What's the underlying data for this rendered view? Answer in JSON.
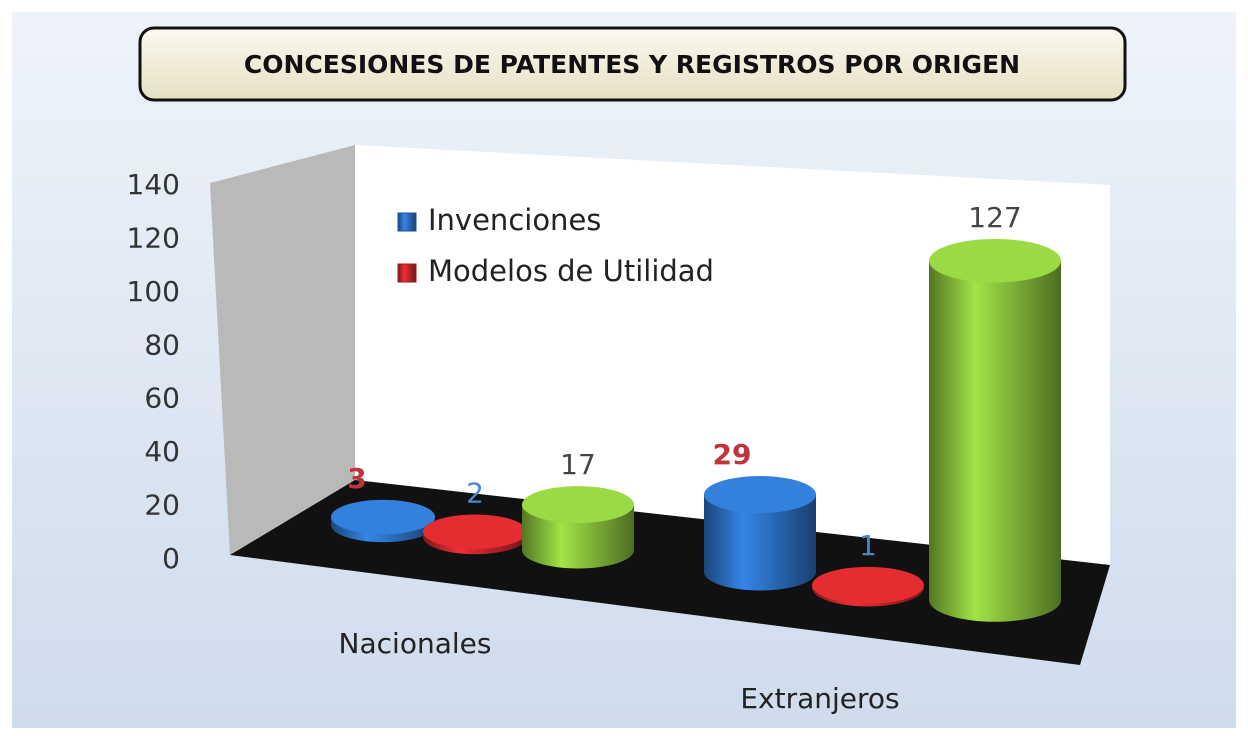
{
  "chart_data": {
    "type": "bar3d",
    "title": "CONCESIONES  DE PATENTES Y REGISTROS POR ORIGEN",
    "categories": [
      "Nacionales",
      "Extranjeros"
    ],
    "series": [
      {
        "name": "Invenciones",
        "color": "#2e74c9",
        "label_color": "#c0353b",
        "values": [
          3,
          29
        ]
      },
      {
        "name": "Modelos de Utilidad",
        "color": "#d0282c",
        "label_color": "#4a86c8",
        "values": [
          2,
          1
        ]
      },
      {
        "color": "#8cc63e",
        "label_color": "#444444",
        "values": [
          17,
          127
        ]
      }
    ],
    "ylim": [
      0,
      140
    ],
    "yticks": [
      0,
      20,
      40,
      60,
      80,
      100,
      120,
      140
    ],
    "grid": false,
    "legend": "top-left"
  }
}
